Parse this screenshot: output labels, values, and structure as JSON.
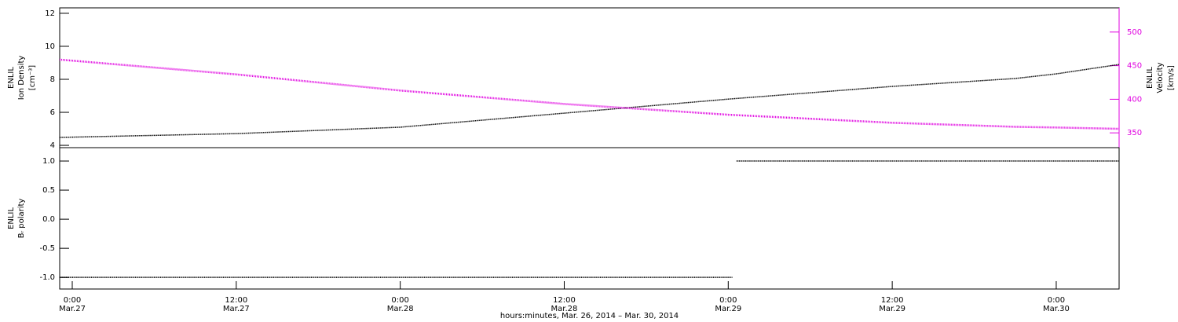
{
  "chart_data": [
    {
      "type": "line",
      "ylabel": [
        "ENLIL",
        "Ion Density",
        "[cm⁻³]"
      ],
      "y2label": [
        "ENLIL",
        "Velocity",
        "[km/s]"
      ],
      "xlim": [
        -0.92,
        76.6
      ],
      "ylim": [
        3.86,
        12.33
      ],
      "yticks": [
        4,
        6,
        8,
        10,
        12
      ],
      "y2lim": [
        328,
        536
      ],
      "y2ticks": [
        350,
        400,
        450,
        500
      ],
      "y2color": "#e000e0",
      "x": [
        -0.92,
        12,
        24,
        36,
        48,
        60,
        69,
        72,
        76.6
      ],
      "series": [
        {
          "name": "Ion Density",
          "color": "#000000",
          "values": [
            4.48,
            4.71,
            5.1,
            5.95,
            6.8,
            7.57,
            8.05,
            8.33,
            8.9
          ]
        },
        {
          "name": "Velocity",
          "color": "#e000e0",
          "axis": "y2",
          "values": [
            459,
            437,
            413,
            393,
            377,
            365,
            359,
            358,
            356
          ]
        }
      ]
    },
    {
      "type": "line",
      "ylabel": [
        "ENLIL",
        "Bᵣ polarity"
      ],
      "xlabel": "hours:minutes, Mar. 26, 2014 – Mar. 30, 2014",
      "xlim": [
        -0.92,
        76.6
      ],
      "ylim": [
        -1.2,
        1.23
      ],
      "yticks": [
        {
          "value": -1,
          "label": "-1.0"
        },
        {
          "value": -0.5,
          "label": "-0.5"
        },
        {
          "value": 0,
          "label": "0.0"
        },
        {
          "value": 0.5,
          "label": "0.5"
        },
        {
          "value": 1,
          "label": "1.0"
        }
      ],
      "xticks": [
        {
          "value": 0,
          "label": [
            "0:00",
            "Mar.27"
          ]
        },
        {
          "value": 12,
          "label": [
            "12:00",
            "Mar.27"
          ]
        },
        {
          "value": 24,
          "label": [
            "0:00",
            "Mar.28"
          ]
        },
        {
          "value": 36,
          "label": [
            "12:00",
            "Mar.28"
          ]
        },
        {
          "value": 48,
          "label": [
            "0:00",
            "Mar.29"
          ]
        },
        {
          "value": 60,
          "label": [
            "12:00",
            "Mar.29"
          ]
        },
        {
          "value": 72,
          "label": [
            "0:00",
            "Mar.30"
          ]
        }
      ],
      "x": [
        -0.92,
        48.3,
        48.45,
        48.6,
        76.6
      ],
      "series": [
        {
          "name": "Br polarity",
          "color": "#000000",
          "values": [
            -1,
            -1,
            null,
            1,
            1
          ]
        }
      ]
    }
  ]
}
